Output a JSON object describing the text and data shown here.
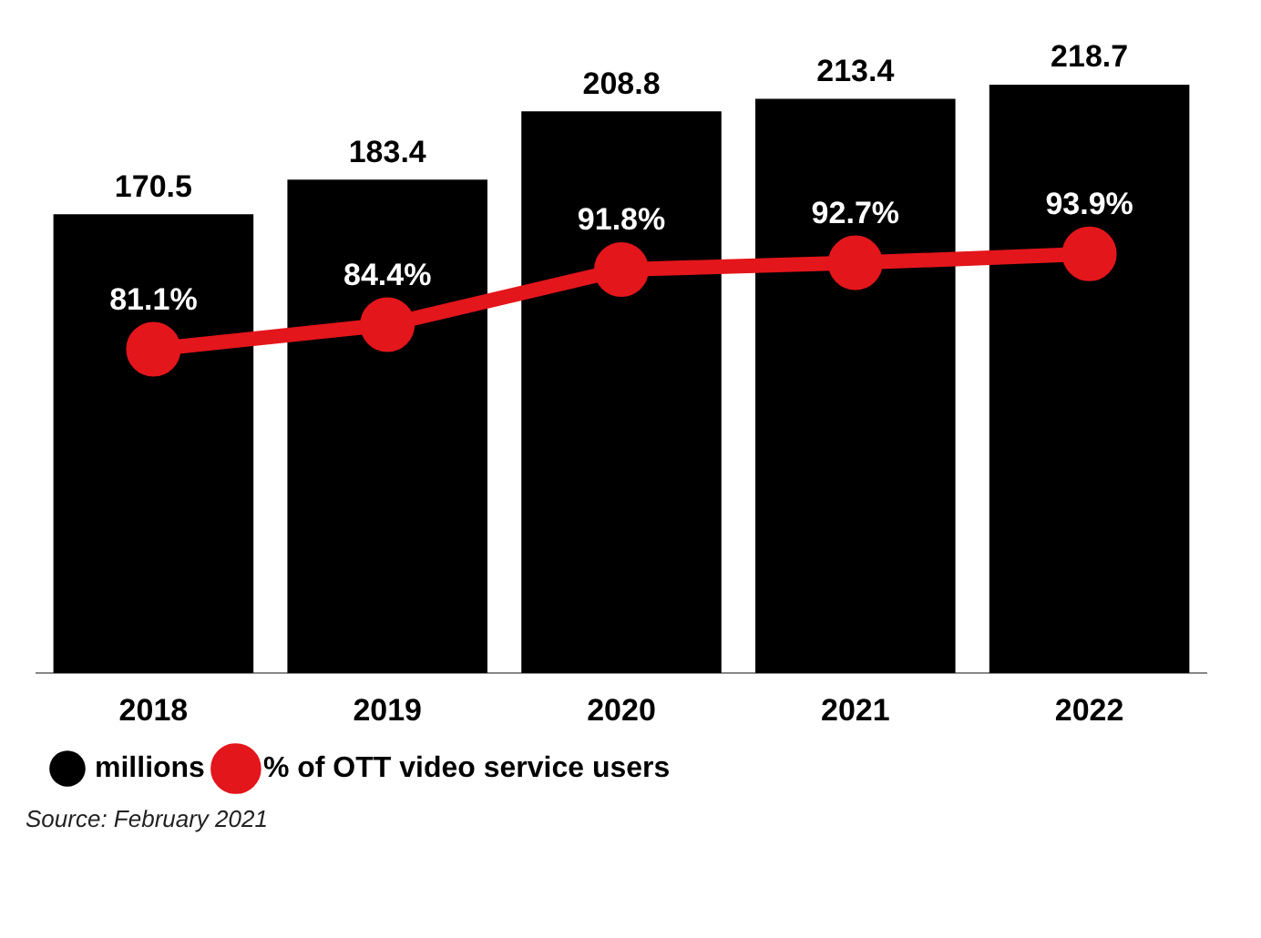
{
  "chart_data": {
    "type": "bar",
    "categories": [
      "2018",
      "2019",
      "2020",
      "2021",
      "2022"
    ],
    "series": [
      {
        "name": "millions",
        "color": "#000000",
        "values": [
          170.5,
          183.4,
          208.8,
          213.4,
          218.7
        ]
      },
      {
        "name": "% of OTT video service users",
        "type": "line",
        "axis": "y2",
        "color": "#e3161b",
        "marker": "circle",
        "values": [
          81.1,
          84.4,
          91.8,
          92.7,
          93.9
        ],
        "value_labels": [
          "81.1%",
          "84.4%",
          "91.8%",
          "92.7%",
          "93.9%"
        ]
      }
    ],
    "data_labels": true,
    "legend": "bottom left",
    "grid": false,
    "tick_labels": "x",
    "annotations": [
      "Source: February 2021"
    ]
  }
}
